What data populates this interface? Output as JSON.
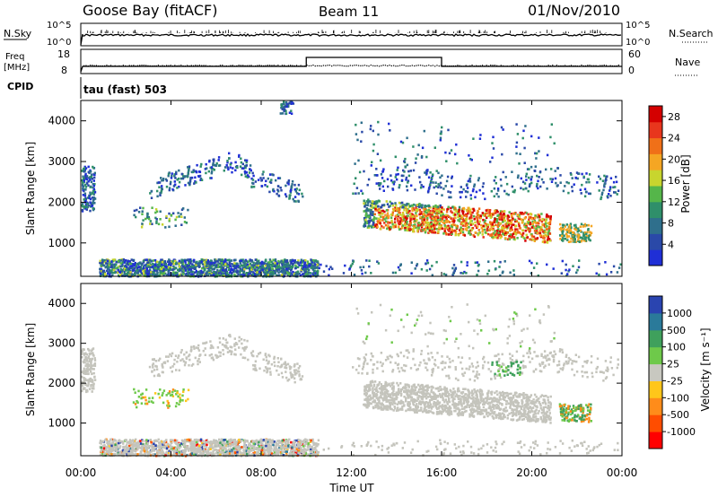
{
  "header": {
    "title": "Goose Bay (fitACF)",
    "beam": "Beam 11",
    "date": "01/Nov/2010"
  },
  "strip_left": {
    "nsky": "N.Sky",
    "nsky_top": "10^5",
    "nsky_bottom": "10^0",
    "freq_line1": "Freq",
    "freq_line2": "[MHz]",
    "freq_top": "18",
    "freq_bottom": "8",
    "cpid": "CPID",
    "mode": "tau (fast) 503"
  },
  "strip_right": {
    "nsearch": "N.Search",
    "nsearch_top": "10^5",
    "nsearch_bottom": "10^0",
    "nave": "Nave",
    "nave_top": "60",
    "nave_bottom": "0"
  },
  "colors": {
    "power": [
      "#1f2fd6",
      "#2a49a8",
      "#2f6f8c",
      "#2f8f6a",
      "#55b64a",
      "#c8d52e",
      "#f5a623",
      "#f07018",
      "#e8361d",
      "#d40000"
    ],
    "velocity": [
      "#ff0000",
      "#ff4d00",
      "#ff8c1a",
      "#ffc61a",
      "#c8c8c0",
      "#6ec94a",
      "#3fa05c",
      "#2a7a9a",
      "#2a44b0"
    ],
    "ground_scatter": "#c4c4bc"
  },
  "chart_data": [
    {
      "type": "line",
      "title": "N.Sky / N.Search",
      "x": [
        "00:00",
        "04:00",
        "08:00",
        "12:00",
        "16:00",
        "20:00",
        "00:00"
      ],
      "series": [
        {
          "name": "N.Sky",
          "values": [
            400,
            500,
            450,
            520,
            480,
            500,
            460
          ]
        }
      ],
      "yscale": "log",
      "ylim": [
        1,
        100000
      ]
    },
    {
      "type": "line",
      "title": "Freq [MHz] / Nave",
      "x": [
        "00:00",
        "04:00",
        "08:00",
        "10:00",
        "16:00",
        "20:00",
        "00:00"
      ],
      "series": [
        {
          "name": "Freq",
          "values": [
            10,
            10,
            10,
            12,
            12,
            10,
            10
          ]
        },
        {
          "name": "Nave",
          "values": [
            15,
            15,
            15,
            50,
            15,
            15,
            15
          ]
        }
      ],
      "ylim_left": [
        8,
        18
      ],
      "ylim_right": [
        0,
        60
      ]
    },
    {
      "type": "heatmap",
      "panel": "power",
      "ylabel": "Slant Range [km]",
      "xlabel": "Time UT",
      "x_ticks": [
        "00:00",
        "04:00",
        "08:00",
        "12:00",
        "16:00",
        "20:00",
        "00:00"
      ],
      "y_ticks": [
        "1000",
        "2000",
        "3000",
        "4000"
      ],
      "ylim": [
        180,
        4500
      ],
      "colorbar_label": "Power [dB]",
      "colorbar_ticks": [
        "4",
        "8",
        "12",
        "16",
        "20",
        "24",
        "28"
      ],
      "colorbar_range": [
        0,
        30
      ]
    },
    {
      "type": "heatmap",
      "panel": "velocity",
      "ylabel": "Slant Range [km]",
      "xlabel": "Time UT",
      "x_ticks": [
        "00:00",
        "04:00",
        "08:00",
        "12:00",
        "16:00",
        "20:00",
        "00:00"
      ],
      "y_ticks": [
        "1000",
        "2000",
        "3000",
        "4000"
      ],
      "ylim": [
        180,
        4500
      ],
      "colorbar_label": "Velocity [m s⁻¹]",
      "colorbar_ticks": [
        "1000",
        "500",
        "100",
        "25",
        "-25",
        "-100",
        "-500",
        "-1000"
      ]
    }
  ]
}
